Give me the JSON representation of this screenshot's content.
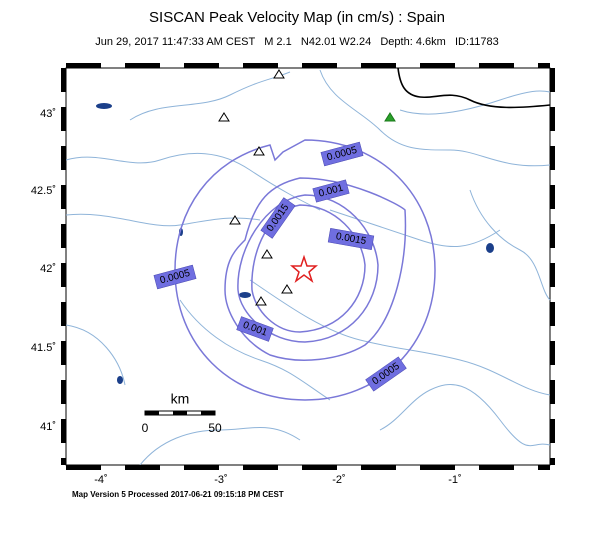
{
  "header": {
    "title": "SISCAN Peak Velocity Map (in cm/s) : Spain",
    "subtitle": "Jun 29, 2017 11:47:33 AM CEST   M 2.1   N42.01 W2.24   Depth: 4.6km   ID:11783"
  },
  "latitude_labels": [
    "43˚",
    "42.5˚",
    "42˚",
    "41.5˚",
    "41˚"
  ],
  "longitude_labels": [
    "-4˚",
    "-3˚",
    "-2˚",
    "-1˚"
  ],
  "contour_labels": [
    "0.0005",
    "0.001",
    "0.0015",
    "0.0015",
    "0.001",
    "0.0005",
    "0.0005"
  ],
  "scale_bar": {
    "unit": "km",
    "start": "0",
    "end": "50"
  },
  "footer": "Map Version 5 Processed 2017-06-21 09:15:18 PM CEST"
}
